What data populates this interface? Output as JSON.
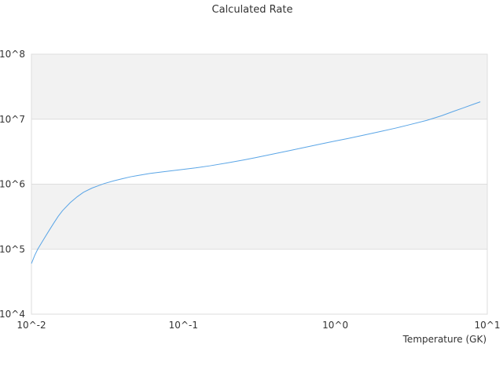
{
  "chart_data": {
    "type": "line",
    "title": "Calculated Rate",
    "xlabel": "Temperature (GK)",
    "ylabel": "",
    "x_scale": "log",
    "y_scale": "log",
    "xlim": [
      0.01,
      10
    ],
    "ylim": [
      10000,
      100000000
    ],
    "grid": "alternating horizontal bands",
    "x_tick_labels": [
      "10^-2",
      "10^-1",
      "10^0",
      "10^1"
    ],
    "y_tick_labels": [
      "10^4",
      "10^5",
      "10^6",
      "10^7",
      "10^8"
    ],
    "colors": {
      "series": "#5aa5e6",
      "band": "#f2f2f2",
      "gridline": "#dddddd"
    },
    "series": [
      {
        "x": [
          0.01,
          0.0105,
          0.011,
          0.012,
          0.013,
          0.014,
          0.015,
          0.016,
          0.018,
          0.02,
          0.022,
          0.025,
          0.03,
          0.035,
          0.04,
          0.045,
          0.05,
          0.06,
          0.07,
          0.08,
          0.1,
          0.12,
          0.15,
          0.2,
          0.25,
          0.3,
          0.4,
          0.5,
          0.6,
          0.7,
          0.8,
          1.0,
          1.2,
          1.5,
          2.0,
          2.5,
          3.0,
          4.0,
          5.0,
          6.0,
          7.0,
          8.0,
          9.0
        ],
        "y": [
          60000,
          80000,
          100000,
          140000,
          190000,
          250000,
          320000,
          390000,
          520000,
          640000,
          750000,
          870000,
          1020000,
          1130000,
          1220000,
          1300000,
          1360000,
          1460000,
          1530000,
          1590000,
          1690000,
          1780000,
          1920000,
          2150000,
          2360000,
          2570000,
          2950000,
          3290000,
          3600000,
          3880000,
          4150000,
          4620000,
          5030000,
          5610000,
          6500000,
          7300000,
          8100000,
          9600000,
          11300000,
          13200000,
          15000000,
          16800000,
          18500000
        ]
      }
    ]
  }
}
